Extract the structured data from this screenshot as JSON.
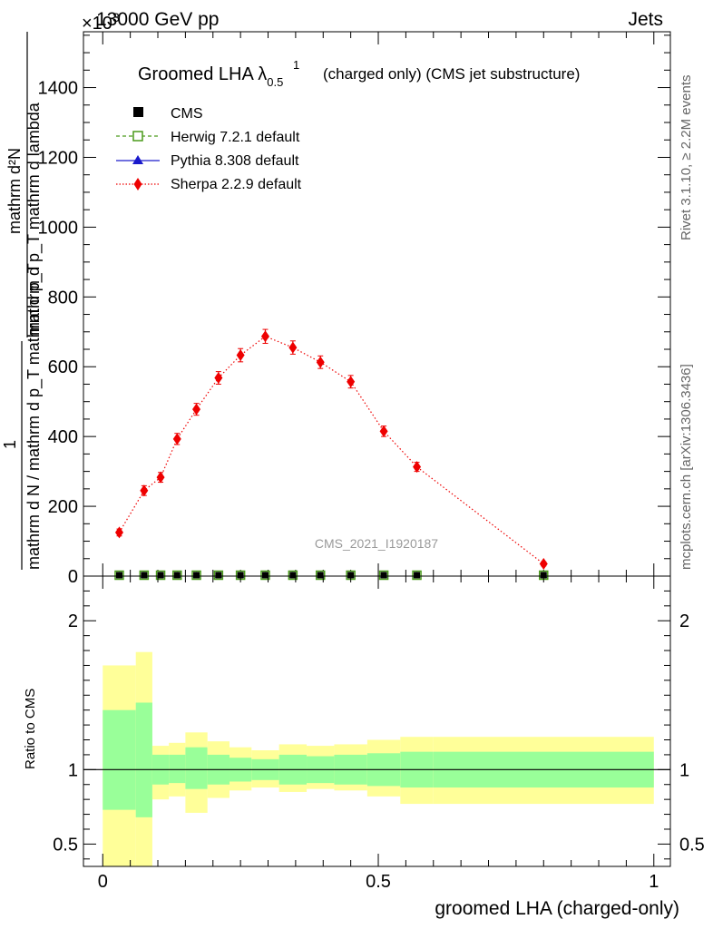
{
  "header": {
    "energy_label": "13000 GeV pp",
    "process_label": "Jets",
    "exponent_label": "×10",
    "exponent_sup": "3",
    "plot_title_main": "Groomed LHA λ",
    "plot_title_sup": "1",
    "plot_title_sub": "0.5",
    "plot_title_rest": "(charged only) (CMS jet substructure)"
  },
  "side_labels": {
    "rivet": "Rivet 3.1.10, ≥ 2.2M events",
    "mcplots": "mcplots.cern.ch [arXiv:1306.3436]"
  },
  "watermark": "CMS_2021_I1920187",
  "y_axis": {
    "top_line1": "mathrm d²N",
    "top_line2": "mathrm d p_T mathrm d lambda",
    "bottom_line1": "1",
    "bottom_line2": "mathrm d N / mathrm d p_T mathrm d p_T"
  },
  "ratio_axis": {
    "label": "Ratio to CMS"
  },
  "x_axis": {
    "label": "groomed LHA (charged-only)"
  },
  "legend": [
    {
      "label": "CMS",
      "color": "#000000",
      "marker": "filled-square"
    },
    {
      "label": "Herwig 7.2.1 default",
      "color": "#4a9a1a",
      "marker": "open-square"
    },
    {
      "label": "Pythia 8.308 default",
      "color": "#1a1acc",
      "marker": "filled-triangle"
    },
    {
      "label": "Sherpa 2.2.9 default",
      "color": "#ee0000",
      "marker": "filled-diamond"
    }
  ],
  "chart_data": {
    "type": "line",
    "xlim": [
      -0.035,
      1.03
    ],
    "ylim": [
      0,
      1560
    ],
    "y_scale_factor": 1000,
    "yticks": [
      0,
      200,
      400,
      600,
      800,
      1000,
      1200,
      1400
    ],
    "xticks": [
      0,
      0.5,
      1
    ],
    "xtick_labels": [
      "0",
      "0.5",
      "1"
    ],
    "bin_edges": [
      0,
      0.06,
      0.09,
      0.12,
      0.15,
      0.19,
      0.23,
      0.27,
      0.32,
      0.37,
      0.42,
      0.48,
      0.54,
      0.6,
      1.0
    ],
    "series": [
      {
        "name": "CMS",
        "x": [
          0.03,
          0.075,
          0.105,
          0.135,
          0.17,
          0.21,
          0.25,
          0.295,
          0.345,
          0.395,
          0.45,
          0.51,
          0.57,
          0.8
        ],
        "y": [
          0,
          0,
          0,
          0,
          0,
          0,
          0,
          0,
          0,
          0,
          0,
          0,
          0,
          0
        ]
      },
      {
        "name": "Herwig 7.2.1 default",
        "x": [
          0.03,
          0.075,
          0.105,
          0.135,
          0.17,
          0.21,
          0.25,
          0.295,
          0.345,
          0.395,
          0.45,
          0.51,
          0.57,
          0.8
        ],
        "y": [
          0,
          0,
          0,
          0,
          0,
          0,
          0,
          0,
          0,
          0,
          0,
          0,
          0,
          0
        ]
      },
      {
        "name": "Pythia 8.308 default",
        "x": [
          0.03,
          0.075,
          0.105,
          0.135,
          0.17,
          0.21,
          0.25,
          0.295,
          0.345,
          0.395,
          0.45,
          0.51,
          0.57,
          0.8
        ],
        "y": [
          0,
          0,
          0,
          0,
          0,
          0,
          0,
          0,
          0,
          0,
          0,
          0,
          0,
          0
        ]
      },
      {
        "name": "Sherpa 2.2.9 default",
        "x": [
          0.03,
          0.075,
          0.105,
          0.135,
          0.17,
          0.21,
          0.25,
          0.295,
          0.345,
          0.395,
          0.45,
          0.51,
          0.57,
          0.8
        ],
        "y": [
          125,
          245,
          283,
          393,
          478,
          568,
          633,
          687,
          655,
          613,
          557,
          415,
          313,
          35
        ],
        "err": [
          10,
          14,
          14,
          16,
          17,
          18,
          19,
          20,
          19,
          18,
          18,
          15,
          13,
          6
        ]
      }
    ],
    "ratio_panel": {
      "ylim": [
        0.35,
        2.3
      ],
      "yticks": [
        0.5,
        1,
        2
      ],
      "ytick_labels": [
        "0.5",
        "1",
        "2"
      ],
      "reference": 1,
      "inner_band_low": [
        0.73,
        0.68,
        0.9,
        0.91,
        0.87,
        0.9,
        0.92,
        0.93,
        0.9,
        0.91,
        0.9,
        0.89,
        0.88,
        0.88
      ],
      "inner_band_high": [
        1.4,
        1.45,
        1.1,
        1.1,
        1.15,
        1.1,
        1.08,
        1.07,
        1.1,
        1.09,
        1.1,
        1.11,
        1.12,
        1.12
      ],
      "outer_band_low": [
        0.35,
        0.35,
        0.8,
        0.82,
        0.71,
        0.81,
        0.86,
        0.88,
        0.85,
        0.87,
        0.86,
        0.82,
        0.77,
        0.77
      ],
      "outer_band_high": [
        1.7,
        1.79,
        1.16,
        1.18,
        1.25,
        1.19,
        1.15,
        1.13,
        1.17,
        1.16,
        1.17,
        1.2,
        1.22,
        1.22
      ],
      "inner_color": "#99ff99",
      "outer_color": "#ffff99"
    }
  }
}
